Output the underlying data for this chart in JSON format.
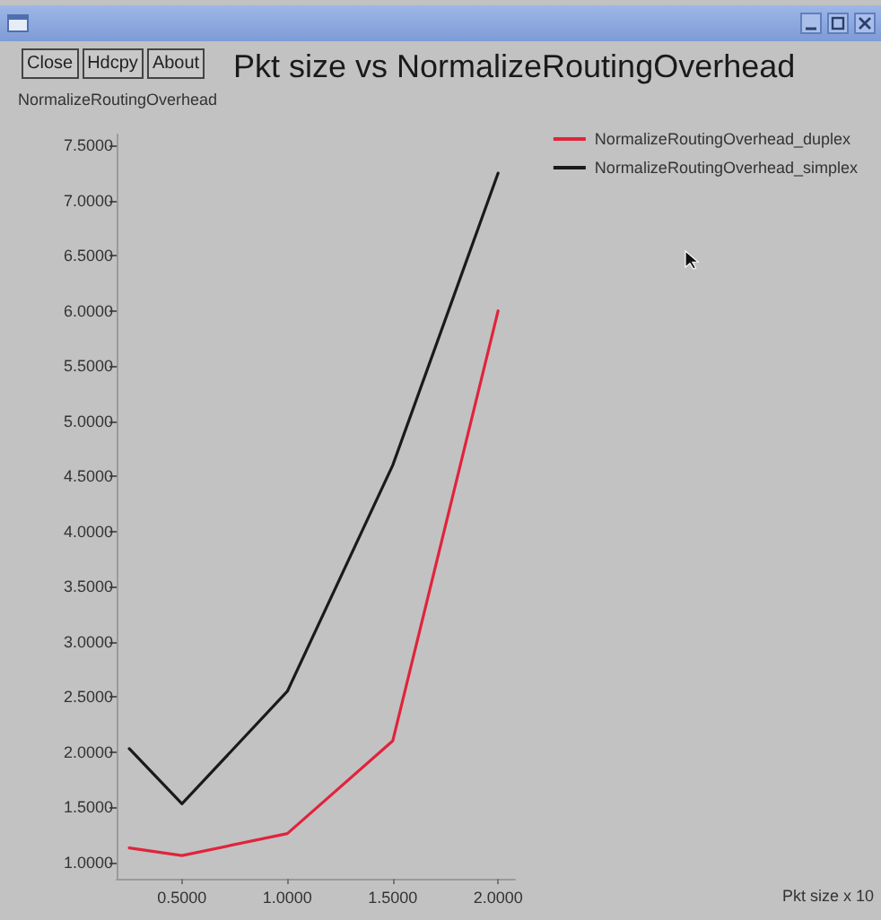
{
  "chart_data": {
    "type": "line",
    "title": "Pkt size vs NormalizeRoutingOverhead",
    "ylabel": "NormalizeRoutingOverhead",
    "annotations": [
      "Close",
      "Hdcpy",
      "About",
      "Pkt size x 10"
    ],
    "x": [
      0.25,
      0.5,
      1.0,
      1.5,
      2.0
    ],
    "series": [
      {
        "name": "NormalizeRoutingOverhead_duplex",
        "color": "#e0243c",
        "values": [
          1.13,
          1.06,
          1.26,
          2.1,
          6.0
        ]
      },
      {
        "name": "NormalizeRoutingOverhead_simplex",
        "color": "#1a1a1a",
        "values": [
          2.03,
          1.53,
          2.55,
          4.6,
          7.25
        ]
      }
    ],
    "xlim": [
      0.19,
      2.08
    ],
    "ylim": [
      0.85,
      7.6
    ],
    "xticks": [
      {
        "value": 0.5,
        "label": "0.5000"
      },
      {
        "value": 1.0,
        "label": "1.0000"
      },
      {
        "value": 1.5,
        "label": "1.5000"
      },
      {
        "value": 2.0,
        "label": "2.0000"
      }
    ],
    "yticks": [
      {
        "value": 1.0,
        "label": "1.0000"
      },
      {
        "value": 1.5,
        "label": "1.5000"
      },
      {
        "value": 2.0,
        "label": "2.0000"
      },
      {
        "value": 2.5,
        "label": "2.5000"
      },
      {
        "value": 3.0,
        "label": "3.0000"
      },
      {
        "value": 3.5,
        "label": "3.5000"
      },
      {
        "value": 4.0,
        "label": "4.0000"
      },
      {
        "value": 4.5,
        "label": "4.5000"
      },
      {
        "value": 5.0,
        "label": "5.0000"
      },
      {
        "value": 5.5,
        "label": "5.5000"
      },
      {
        "value": 6.0,
        "label": "6.0000"
      },
      {
        "value": 6.5,
        "label": "6.5000"
      },
      {
        "value": 7.0,
        "label": "7.0000"
      },
      {
        "value": 7.5,
        "label": "7.5000"
      }
    ],
    "legend": "top right"
  }
}
